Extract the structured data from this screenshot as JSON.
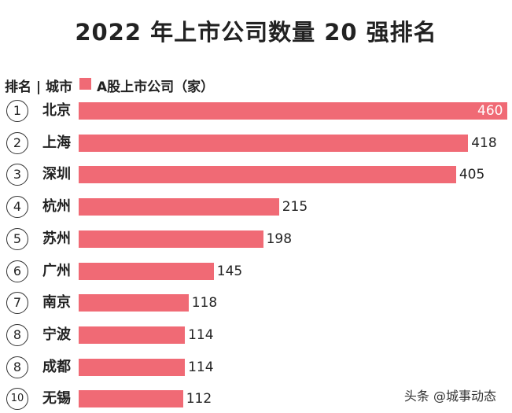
{
  "chart_data": {
    "type": "bar",
    "orientation": "horizontal",
    "title": "2022 年上市公司数量 20 强排名",
    "header_rank_city": "排名 | 城市",
    "legend": "A股上市公司（家）",
    "ranks": [
      "1",
      "2",
      "3",
      "4",
      "5",
      "6",
      "7",
      "8",
      "8",
      "10"
    ],
    "categories": [
      "北京",
      "上海",
      "深圳",
      "杭州",
      "苏州",
      "广州",
      "南京",
      "宁波",
      "成都",
      "无锡"
    ],
    "values": [
      460,
      418,
      405,
      215,
      198,
      145,
      118,
      114,
      114,
      112
    ],
    "bar_color": "#f06a75",
    "grid": false,
    "legend_position": "top-left"
  },
  "watermark": "头条 @城事动态"
}
